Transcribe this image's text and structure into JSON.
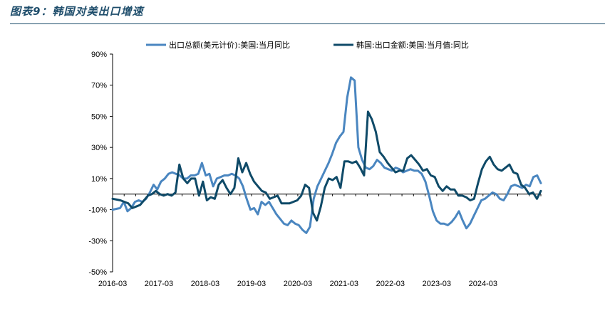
{
  "figure": {
    "title": "图表9：韩国对美出口增速"
  },
  "chart_data": {
    "type": "line",
    "title": "图表9：韩国对美出口增速",
    "xlabel": "",
    "ylabel": "",
    "ylim": [
      -50,
      90
    ],
    "y_ticks": [
      -50,
      -30,
      -10,
      10,
      30,
      50,
      70,
      90
    ],
    "y_tick_labels": [
      "-50%",
      "-30%",
      "-10%",
      "10%",
      "30%",
      "50%",
      "70%",
      "90%"
    ],
    "x_tick_labels": [
      "2016-03",
      "2017-03",
      "2018-03",
      "2019-03",
      "2020-03",
      "2021-03",
      "2022-03",
      "2023-03",
      "2024-03"
    ],
    "x_range_months": [
      0,
      111
    ],
    "x_start": "2016-03",
    "legend_position": "top",
    "grid": false,
    "series": [
      {
        "name": "出口总额(美元计价):美国:当月同比",
        "color": "#4a86c0",
        "values": [
          -10,
          -9.5,
          -9,
          -5,
          -11,
          -9,
          -5,
          -4,
          -5,
          -3,
          1,
          6,
          3,
          8,
          10,
          13,
          14,
          13,
          12,
          10,
          10,
          12,
          12,
          13,
          20,
          12,
          13,
          5,
          10,
          11,
          12,
          12,
          13,
          12,
          10,
          5,
          -3,
          -10,
          -9,
          -13,
          -5,
          -7,
          -5,
          -9,
          -13,
          -16,
          -19,
          -20,
          -17,
          -19,
          -20,
          -23,
          -25,
          -21,
          -3,
          5,
          10,
          15,
          20,
          26,
          33,
          37,
          40,
          62,
          75,
          73,
          30,
          22,
          17,
          16,
          18,
          22,
          20,
          17,
          16,
          15,
          17,
          16,
          14,
          15,
          16,
          15,
          15,
          13,
          8,
          -1,
          -11,
          -17,
          -19,
          -19,
          -20,
          -18,
          -15,
          -11,
          -17,
          -22,
          -19,
          -14,
          -9,
          -4,
          -3,
          -1,
          1,
          0,
          -3,
          -4,
          0,
          5,
          6,
          5,
          4,
          6,
          5,
          11,
          12,
          7
        ],
        "x_positions_months": null
      },
      {
        "name": "韩国:出口金额:美国:当月值:同比",
        "color": "#0f4a68",
        "values": [
          -3,
          -3.5,
          -4,
          -5,
          -6,
          -9,
          -8,
          -7,
          -4,
          -1,
          0,
          2,
          0,
          -1,
          0,
          -1,
          1,
          19,
          10,
          7,
          10,
          10,
          -1,
          8,
          -4,
          -2,
          -3,
          6,
          9,
          4,
          0,
          4,
          23,
          14,
          20,
          13,
          8,
          5,
          2,
          1,
          -3,
          -2,
          -1,
          -6,
          -6,
          -6,
          -5,
          -4,
          -1,
          6,
          4,
          -12,
          -17,
          -8,
          4,
          10,
          9,
          11,
          4,
          21,
          21,
          20,
          21,
          17,
          12,
          53,
          48,
          40,
          27,
          24,
          20,
          17,
          14,
          15,
          15,
          23,
          25,
          22,
          19,
          15,
          16,
          12,
          11,
          5,
          2,
          5,
          3,
          3,
          -1,
          -1,
          -2,
          -4,
          -3,
          7,
          16,
          21,
          24,
          19,
          16,
          15,
          17,
          19,
          14,
          13,
          6,
          4,
          0,
          1,
          -3,
          2
        ]
      }
    ]
  }
}
